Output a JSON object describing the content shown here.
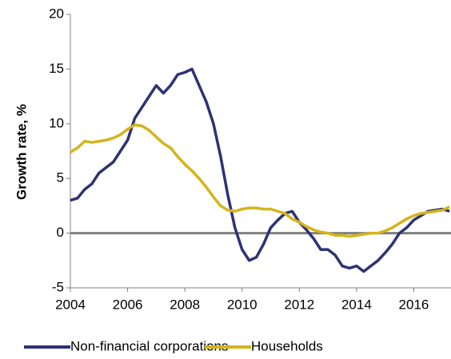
{
  "chart_data": {
    "type": "line",
    "y_label": "Growth rate, %",
    "x": [
      2004,
      2004.25,
      2004.5,
      2004.75,
      2005,
      2005.25,
      2005.5,
      2005.75,
      2006,
      2006.25,
      2006.5,
      2006.75,
      2007,
      2007.25,
      2007.5,
      2007.75,
      2008,
      2008.25,
      2008.5,
      2008.75,
      2009,
      2009.25,
      2009.5,
      2009.75,
      2010,
      2010.25,
      2010.5,
      2010.75,
      2011,
      2011.25,
      2011.5,
      2011.75,
      2012,
      2012.25,
      2012.5,
      2012.75,
      2013,
      2013.25,
      2013.5,
      2013.75,
      2014,
      2014.25,
      2014.5,
      2014.75,
      2015,
      2015.25,
      2015.5,
      2015.75,
      2016,
      2016.25,
      2016.5,
      2016.75,
      2017,
      2017.25
    ],
    "series": [
      {
        "name": "Non-financial corporations",
        "color": "#2e3274",
        "values": [
          3.0,
          3.2,
          4.0,
          4.5,
          5.5,
          6.0,
          6.5,
          7.5,
          8.5,
          10.5,
          11.5,
          12.5,
          13.5,
          12.8,
          13.5,
          14.5,
          14.7,
          15.0,
          13.5,
          12.0,
          10.0,
          7.0,
          3.5,
          0.5,
          -1.5,
          -2.5,
          -2.2,
          -1.0,
          0.5,
          1.2,
          1.8,
          2.0,
          1.0,
          0.3,
          -0.5,
          -1.5,
          -1.5,
          -2.0,
          -3.0,
          -3.2,
          -3.0,
          -3.5,
          -3.0,
          -2.5,
          -1.8,
          -1.0,
          0.0,
          0.5,
          1.2,
          1.6,
          2.0,
          2.1,
          2.2,
          2.0
        ]
      },
      {
        "name": "Households",
        "color": "#d4b41a",
        "values": [
          7.4,
          7.8,
          8.4,
          8.3,
          8.4,
          8.5,
          8.7,
          9.0,
          9.5,
          9.9,
          9.8,
          9.4,
          8.8,
          8.2,
          7.8,
          7.0,
          6.3,
          5.7,
          5.0,
          4.2,
          3.3,
          2.5,
          2.1,
          2.0,
          2.2,
          2.3,
          2.3,
          2.2,
          2.2,
          2.0,
          1.8,
          1.3,
          1.0,
          0.6,
          0.3,
          0.1,
          0.0,
          -0.2,
          -0.2,
          -0.3,
          -0.2,
          -0.1,
          0.0,
          0.0,
          0.2,
          0.5,
          0.9,
          1.3,
          1.6,
          1.8,
          1.9,
          2.0,
          2.1,
          2.4
        ]
      }
    ],
    "xlim": [
      2004,
      2017.3
    ],
    "xticks": [
      2004,
      2006,
      2008,
      2010,
      2012,
      2014,
      2016
    ],
    "ylim": [
      -5,
      20
    ],
    "yticks": [
      -5,
      0,
      5,
      10,
      15,
      20
    ],
    "grid": false,
    "legend": "bottom"
  }
}
